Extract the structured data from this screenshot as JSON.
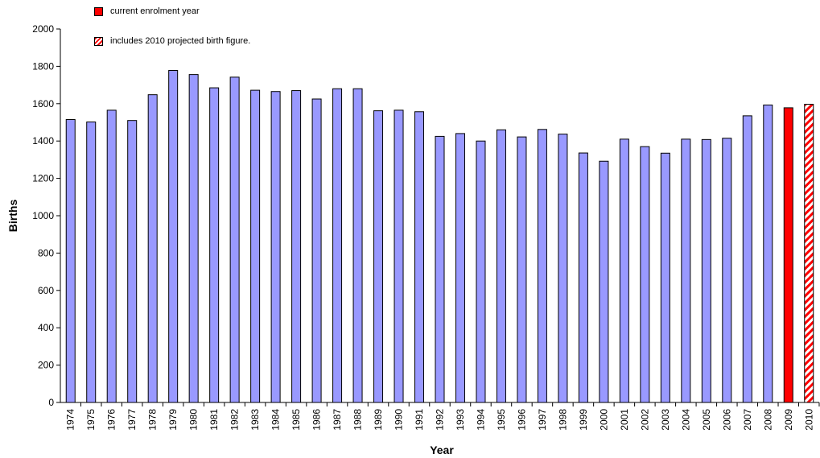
{
  "legend": {
    "current_label": "current enrolment year",
    "projected_label": "includes 2010 projected birth figure."
  },
  "colors": {
    "bar": "#9999ff",
    "current": "#ff0000",
    "projected": "#ff0000",
    "axis": "#000000"
  },
  "chart_data": {
    "type": "bar",
    "xlabel": "Year",
    "ylabel": "Births",
    "ylim": [
      0,
      2000
    ],
    "yticks": [
      0,
      200,
      400,
      600,
      800,
      1000,
      1200,
      1400,
      1600,
      1800,
      2000
    ],
    "categories": [
      "1974",
      "1975",
      "1976",
      "1977",
      "1978",
      "1979",
      "1980",
      "1981",
      "1982",
      "1983",
      "1984",
      "1985",
      "1986",
      "1987",
      "1988",
      "1989",
      "1990",
      "1991",
      "1992",
      "1993",
      "1994",
      "1995",
      "1996",
      "1997",
      "1998",
      "1999",
      "2000",
      "2001",
      "2002",
      "2003",
      "2004",
      "2005",
      "2006",
      "2007",
      "2008",
      "2009",
      "2010"
    ],
    "values": [
      1515,
      1502,
      1565,
      1510,
      1648,
      1778,
      1756,
      1685,
      1742,
      1672,
      1665,
      1670,
      1625,
      1680,
      1680,
      1562,
      1565,
      1557,
      1425,
      1440,
      1400,
      1460,
      1422,
      1462,
      1437,
      1336,
      1292,
      1410,
      1370,
      1335,
      1410,
      1408,
      1415,
      1535,
      1593,
      1578,
      1597
    ],
    "highlight": {
      "current": "2009",
      "projected": "2010"
    },
    "grid": false,
    "legend_position": "top-left"
  }
}
